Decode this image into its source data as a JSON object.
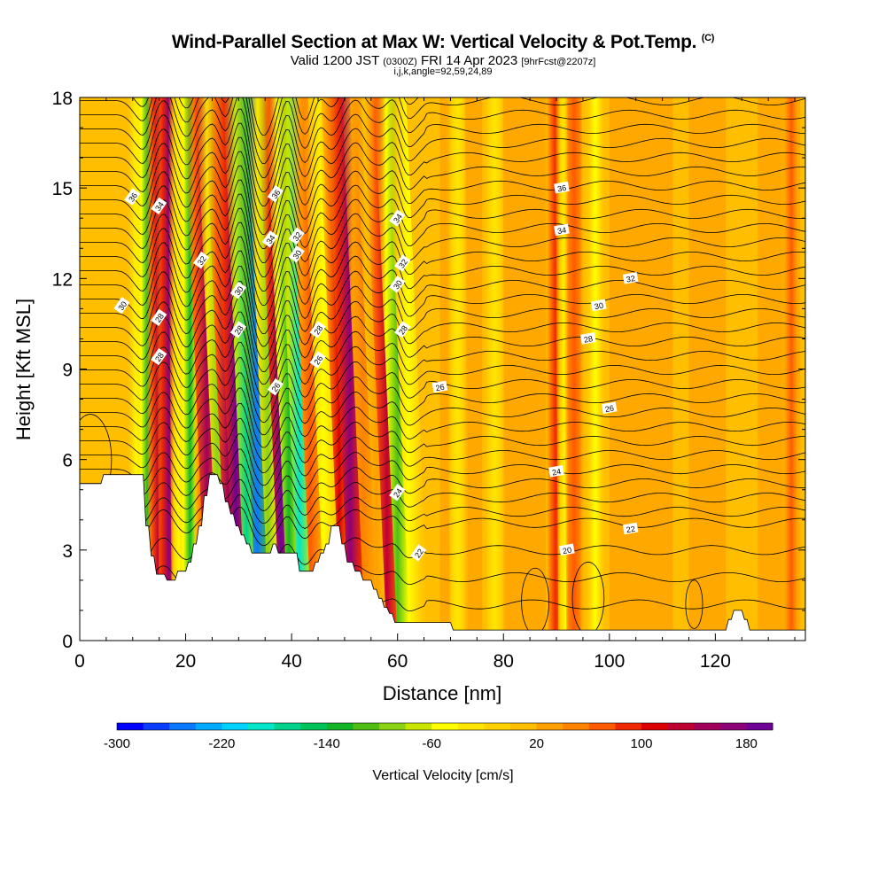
{
  "title": "Wind-Parallel Section at Max W: Vertical Velocity & Pot.Temp.",
  "copyright": "(C)",
  "subtitle_main": "Valid 1200 JST",
  "subtitle_utc": "(0300Z)",
  "subtitle_date": "FRI 14 Apr 2023",
  "subtitle_fcst": "[9hrFcst@2207z]",
  "subsubtitle": "i,j,k,angle=92,59,24,89",
  "chart_data": {
    "type": "heatmap",
    "xlabel": "Distance [nm]",
    "ylabel": "Height [Kft MSL]",
    "xlim": [
      0,
      137
    ],
    "ylim": [
      0,
      18
    ],
    "xticks": [
      0,
      20,
      40,
      60,
      80,
      100,
      120
    ],
    "yticks": [
      0,
      3,
      6,
      9,
      12,
      15,
      18
    ],
    "colorbar": {
      "label": "Vertical Velocity [cm/s]",
      "ticks": [
        -300,
        -220,
        -140,
        -60,
        20,
        100,
        180
      ],
      "colors": [
        "#0000ff",
        "#0a3cff",
        "#0a78ff",
        "#00aaff",
        "#00d2ff",
        "#00e6c8",
        "#00d28c",
        "#00c35a",
        "#14b428",
        "#50be14",
        "#8cd214",
        "#c8e600",
        "#ffff00",
        "#ffe600",
        "#ffd200",
        "#ffbe00",
        "#ffa000",
        "#ff8200",
        "#ff5a00",
        "#f02800",
        "#dc0000",
        "#be0032",
        "#a0005a",
        "#8c0078",
        "#6e0096"
      ]
    },
    "theta_contour_labels": [
      "36",
      "34",
      "32",
      "30",
      "28",
      "26",
      "24",
      "22",
      "20"
    ],
    "velocity_columns": [
      {
        "x": 10.5,
        "w": -60
      },
      {
        "x": 12.5,
        "w": -140
      },
      {
        "x": 14.5,
        "w": 120
      },
      {
        "x": 16.5,
        "w": 160
      },
      {
        "x": 18.5,
        "w": -60
      },
      {
        "x": 20.5,
        "w": -140
      },
      {
        "x": 23,
        "w": 60
      },
      {
        "x": 25.5,
        "w": 140
      },
      {
        "x": 27.5,
        "w": -100
      },
      {
        "x": 29.5,
        "w": 140
      },
      {
        "x": 31,
        "w": 180
      },
      {
        "x": 33,
        "w": -180
      },
      {
        "x": 35,
        "w": -260
      },
      {
        "x": 37,
        "w": -100
      },
      {
        "x": 39.5,
        "w": 180
      },
      {
        "x": 41,
        "w": -140
      },
      {
        "x": 43,
        "w": -200
      },
      {
        "x": 45,
        "w": 60
      },
      {
        "x": 47.5,
        "w": -60
      },
      {
        "x": 50.5,
        "w": 100
      },
      {
        "x": 52.5,
        "w": 160
      },
      {
        "x": 55,
        "w": 40
      },
      {
        "x": 57.5,
        "w": 20
      },
      {
        "x": 59.5,
        "w": 120
      },
      {
        "x": 61.5,
        "w": -120
      },
      {
        "x": 63.5,
        "w": -60
      },
      {
        "x": 71,
        "w": -40
      },
      {
        "x": 78,
        "w": -30
      },
      {
        "x": 89.5,
        "w": 80
      },
      {
        "x": 91.5,
        "w": -60
      },
      {
        "x": 93,
        "w": 70
      },
      {
        "x": 97,
        "w": -50
      },
      {
        "x": 134,
        "w": 60
      }
    ],
    "terrain_kft": [
      [
        0,
        5.2
      ],
      [
        4,
        5.2
      ],
      [
        4.5,
        5.5
      ],
      [
        12,
        5.5
      ],
      [
        12.5,
        3.8
      ],
      [
        13,
        3.8
      ],
      [
        13.5,
        2.8
      ],
      [
        14,
        2.8
      ],
      [
        14.5,
        2.2
      ],
      [
        16,
        2.2
      ],
      [
        16.5,
        2.0
      ],
      [
        18,
        2.0
      ],
      [
        18.5,
        2.3
      ],
      [
        20,
        2.3
      ],
      [
        20.5,
        2.6
      ],
      [
        21,
        2.6
      ],
      [
        21.5,
        3.2
      ],
      [
        22,
        3.2
      ],
      [
        22.5,
        3.8
      ],
      [
        23,
        3.8
      ],
      [
        23.5,
        4.8
      ],
      [
        24,
        4.8
      ],
      [
        24.5,
        5.5
      ],
      [
        26,
        5.5
      ],
      [
        26.5,
        5.2
      ],
      [
        27,
        5.2
      ],
      [
        27.5,
        4.6
      ],
      [
        28,
        4.6
      ],
      [
        28.5,
        4.2
      ],
      [
        29,
        4.2
      ],
      [
        29.5,
        3.8
      ],
      [
        30,
        3.8
      ],
      [
        30.5,
        3.5
      ],
      [
        31,
        3.5
      ],
      [
        31.5,
        3.2
      ],
      [
        32,
        3.2
      ],
      [
        32.5,
        2.9
      ],
      [
        36,
        2.9
      ],
      [
        36.5,
        3.2
      ],
      [
        37,
        3.2
      ],
      [
        37.5,
        2.9
      ],
      [
        41,
        2.9
      ],
      [
        41.5,
        2.3
      ],
      [
        44,
        2.3
      ],
      [
        44.5,
        2.6
      ],
      [
        45,
        2.6
      ],
      [
        45.5,
        2.9
      ],
      [
        46,
        2.9
      ],
      [
        46.5,
        3.2
      ],
      [
        47,
        3.2
      ],
      [
        47.5,
        3.8
      ],
      [
        49,
        3.8
      ],
      [
        49.5,
        3.2
      ],
      [
        50,
        3.2
      ],
      [
        50.5,
        2.6
      ],
      [
        51.5,
        2.6
      ],
      [
        52,
        2.3
      ],
      [
        53,
        2.3
      ],
      [
        53.5,
        2.0
      ],
      [
        55,
        2.0
      ],
      [
        55.5,
        1.7
      ],
      [
        56,
        1.7
      ],
      [
        56.5,
        1.4
      ],
      [
        57,
        1.4
      ],
      [
        57.5,
        1.1
      ],
      [
        58,
        1.1
      ],
      [
        58.5,
        0.9
      ],
      [
        59,
        0.9
      ],
      [
        59.5,
        0.6
      ],
      [
        70,
        0.6
      ],
      [
        70.5,
        0.35
      ],
      [
        122,
        0.35
      ],
      [
        122.5,
        0.7
      ],
      [
        123,
        0.7
      ],
      [
        123.5,
        1.0
      ],
      [
        125,
        1.0
      ],
      [
        125.5,
        0.7
      ],
      [
        126,
        0.7
      ],
      [
        126.5,
        0.35
      ],
      [
        137,
        0.35
      ]
    ]
  }
}
